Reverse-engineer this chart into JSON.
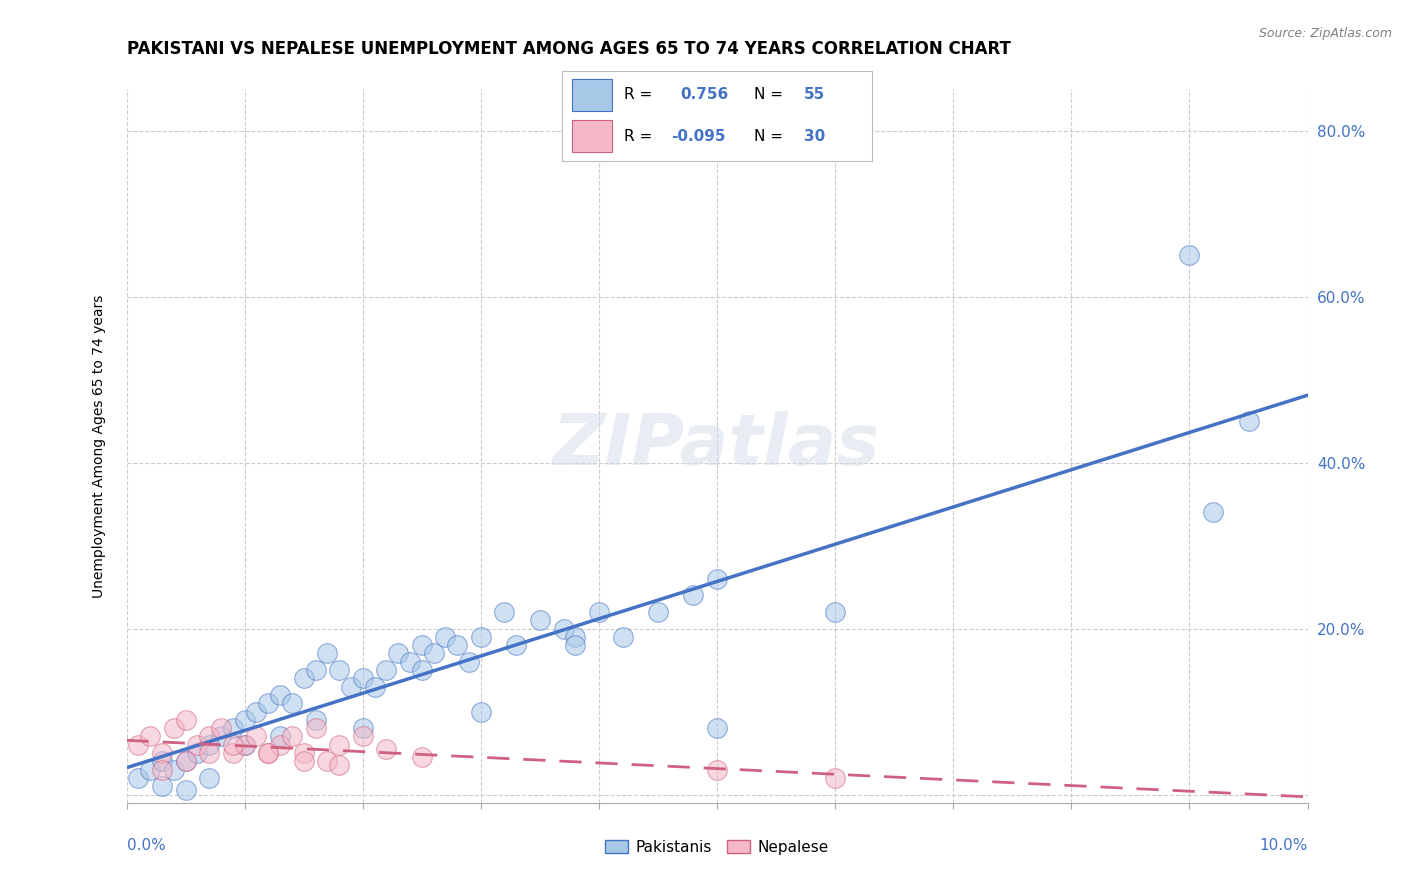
{
  "title": "PAKISTANI VS NEPALESE UNEMPLOYMENT AMONG AGES 65 TO 74 YEARS CORRELATION CHART",
  "source": "Source: ZipAtlas.com",
  "ylabel": "Unemployment Among Ages 65 to 74 years",
  "yticks": [
    0.0,
    0.2,
    0.4,
    0.6,
    0.8
  ],
  "ytick_labels": [
    "",
    "20.0%",
    "40.0%",
    "60.0%",
    "80.0%"
  ],
  "xlim": [
    0.0,
    0.1
  ],
  "ylim": [
    -0.01,
    0.85
  ],
  "pakistani_R": 0.756,
  "pakistani_N": 55,
  "nepalese_R": -0.095,
  "nepalese_N": 30,
  "blue_fill": "#a8c8e8",
  "blue_edge": "#4472c4",
  "pink_fill": "#f4b8c8",
  "pink_edge": "#d06080",
  "blue_line": "#4472c4",
  "pink_line": "#d06080",
  "background_color": "#ffffff",
  "grid_color": "#cccccc",
  "pakistani_x": [
    0.001,
    0.002,
    0.003,
    0.004,
    0.005,
    0.006,
    0.007,
    0.008,
    0.009,
    0.01,
    0.011,
    0.012,
    0.013,
    0.014,
    0.015,
    0.016,
    0.017,
    0.018,
    0.019,
    0.02,
    0.021,
    0.022,
    0.023,
    0.024,
    0.025,
    0.026,
    0.027,
    0.028,
    0.029,
    0.03,
    0.032,
    0.033,
    0.035,
    0.037,
    0.038,
    0.04,
    0.042,
    0.045,
    0.048,
    0.05,
    0.003,
    0.005,
    0.007,
    0.01,
    0.013,
    0.016,
    0.02,
    0.025,
    0.03,
    0.038,
    0.05,
    0.06,
    0.09,
    0.092,
    0.095
  ],
  "pakistani_y": [
    0.02,
    0.03,
    0.04,
    0.03,
    0.04,
    0.05,
    0.06,
    0.07,
    0.08,
    0.09,
    0.1,
    0.11,
    0.12,
    0.11,
    0.14,
    0.15,
    0.17,
    0.15,
    0.13,
    0.14,
    0.13,
    0.15,
    0.17,
    0.16,
    0.18,
    0.17,
    0.19,
    0.18,
    0.16,
    0.19,
    0.22,
    0.18,
    0.21,
    0.2,
    0.19,
    0.22,
    0.19,
    0.22,
    0.24,
    0.26,
    0.01,
    0.005,
    0.02,
    0.06,
    0.07,
    0.09,
    0.08,
    0.15,
    0.1,
    0.18,
    0.08,
    0.22,
    0.65,
    0.34,
    0.45
  ],
  "nepalese_x": [
    0.001,
    0.002,
    0.003,
    0.004,
    0.005,
    0.006,
    0.007,
    0.008,
    0.009,
    0.01,
    0.011,
    0.012,
    0.013,
    0.014,
    0.015,
    0.016,
    0.017,
    0.018,
    0.02,
    0.022,
    0.003,
    0.005,
    0.007,
    0.009,
    0.012,
    0.015,
    0.018,
    0.025,
    0.05,
    0.06
  ],
  "nepalese_y": [
    0.06,
    0.07,
    0.05,
    0.08,
    0.09,
    0.06,
    0.07,
    0.08,
    0.05,
    0.06,
    0.07,
    0.05,
    0.06,
    0.07,
    0.05,
    0.08,
    0.04,
    0.06,
    0.07,
    0.055,
    0.03,
    0.04,
    0.05,
    0.06,
    0.05,
    0.04,
    0.035,
    0.045,
    0.03,
    0.02
  ],
  "legend_pakistani_label": "Pakistanis",
  "legend_nepalese_label": "Nepalese",
  "watermark": "ZIPatlas",
  "title_fontsize": 12,
  "label_fontsize": 10,
  "tick_fontsize": 11
}
